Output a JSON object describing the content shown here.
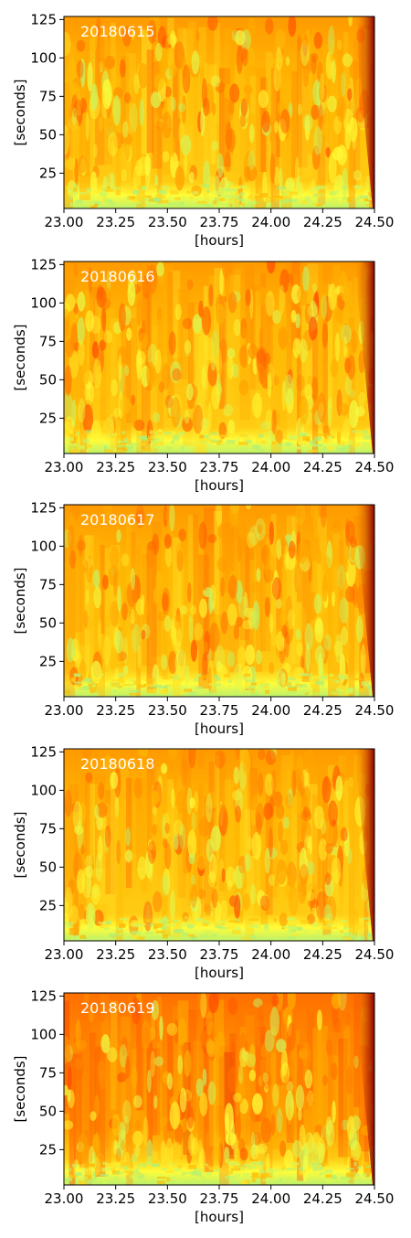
{
  "figure": {
    "colormap": [
      "#7ee59a",
      "#ffff3a",
      "#ffb300",
      "#ff4a00",
      "#8a0000"
    ],
    "panel_labels_color": "#ffffff"
  },
  "chart_data": [
    {
      "type": "heatmap",
      "title": "20180615",
      "xlabel": "[hours]",
      "ylabel": "[seconds]",
      "xlim": [
        23.0,
        24.5
      ],
      "ylim": [
        2,
        127
      ],
      "xticks": [
        "23.00",
        "23.25",
        "23.50",
        "23.75",
        "24.00",
        "24.25",
        "24.50"
      ],
      "yticks": [
        "25",
        "50",
        "75",
        "100",
        "125"
      ],
      "x_tick_values": [
        23.0,
        23.25,
        23.5,
        23.75,
        24.0,
        24.25,
        24.5
      ],
      "y_tick_values": [
        25,
        50,
        75,
        100,
        125
      ],
      "intensity_note": "low (green) near bottom, rising to orange/red above; dark red at right edge"
    },
    {
      "type": "heatmap",
      "title": "20180616",
      "xlabel": "[hours]",
      "ylabel": "[seconds]",
      "xlim": [
        23.0,
        24.5
      ],
      "ylim": [
        2,
        127
      ],
      "xticks": [
        "23.00",
        "23.25",
        "23.50",
        "23.75",
        "24.00",
        "24.25",
        "24.50"
      ],
      "yticks": [
        "25",
        "50",
        "75",
        "100",
        "125"
      ],
      "x_tick_values": [
        23.0,
        23.25,
        23.5,
        23.75,
        24.0,
        24.25,
        24.5
      ],
      "y_tick_values": [
        25,
        50,
        75,
        100,
        125
      ]
    },
    {
      "type": "heatmap",
      "title": "20180617",
      "xlabel": "[hours]",
      "ylabel": "[seconds]",
      "xlim": [
        23.0,
        24.5
      ],
      "ylim": [
        2,
        127
      ],
      "xticks": [
        "23.00",
        "23.25",
        "23.50",
        "23.75",
        "24.00",
        "24.25",
        "24.50"
      ],
      "yticks": [
        "25",
        "50",
        "75",
        "100",
        "125"
      ],
      "x_tick_values": [
        23.0,
        23.25,
        23.5,
        23.75,
        24.0,
        24.25,
        24.5
      ],
      "y_tick_values": [
        25,
        50,
        75,
        100,
        125
      ]
    },
    {
      "type": "heatmap",
      "title": "20180618",
      "xlabel": "[hours]",
      "ylabel": "[seconds]",
      "xlim": [
        23.0,
        24.5
      ],
      "ylim": [
        2,
        127
      ],
      "xticks": [
        "23.00",
        "23.25",
        "23.50",
        "23.75",
        "24.00",
        "24.25",
        "24.50"
      ],
      "yticks": [
        "25",
        "50",
        "75",
        "100",
        "125"
      ],
      "x_tick_values": [
        23.0,
        23.25,
        23.5,
        23.75,
        24.0,
        24.25,
        24.5
      ],
      "y_tick_values": [
        25,
        50,
        75,
        100,
        125
      ]
    },
    {
      "type": "heatmap",
      "title": "20180619",
      "xlabel": "[hours]",
      "ylabel": "[seconds]",
      "xlim": [
        23.0,
        24.5
      ],
      "ylim": [
        2,
        127
      ],
      "xticks": [
        "23.00",
        "23.25",
        "23.50",
        "23.75",
        "24.00",
        "24.25",
        "24.50"
      ],
      "yticks": [
        "25",
        "50",
        "75",
        "100",
        "125"
      ],
      "x_tick_values": [
        23.0,
        23.25,
        23.5,
        23.75,
        24.0,
        24.25,
        24.5
      ],
      "y_tick_values": [
        25,
        50,
        75,
        100,
        125
      ]
    }
  ]
}
